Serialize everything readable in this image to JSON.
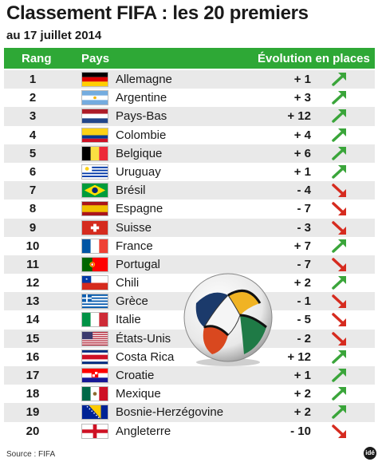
{
  "title": "Classement FIFA : les 20 premiers",
  "subtitle": "au 17 juillet 2014",
  "header": {
    "rank": "Rang",
    "country": "Pays",
    "evolution": "Évolution en places"
  },
  "rows": [
    {
      "rank": "1",
      "country": "Allemagne",
      "evolution": "+ 1",
      "direction": "up",
      "flag": "germany"
    },
    {
      "rank": "2",
      "country": "Argentine",
      "evolution": "+ 3",
      "direction": "up",
      "flag": "argentina"
    },
    {
      "rank": "3",
      "country": "Pays-Bas",
      "evolution": "+ 12",
      "direction": "up",
      "flag": "netherlands"
    },
    {
      "rank": "4",
      "country": "Colombie",
      "evolution": "+ 4",
      "direction": "up",
      "flag": "colombia"
    },
    {
      "rank": "5",
      "country": "Belgique",
      "evolution": "+ 6",
      "direction": "up",
      "flag": "belgium"
    },
    {
      "rank": "6",
      "country": "Uruguay",
      "evolution": "+ 1",
      "direction": "up",
      "flag": "uruguay"
    },
    {
      "rank": "7",
      "country": "Brésil",
      "evolution": "- 4",
      "direction": "down",
      "flag": "brazil"
    },
    {
      "rank": "8",
      "country": "Espagne",
      "evolution": "- 7",
      "direction": "down",
      "flag": "spain"
    },
    {
      "rank": "9",
      "country": "Suisse",
      "evolution": "- 3",
      "direction": "down",
      "flag": "switzerland"
    },
    {
      "rank": "10",
      "country": "France",
      "evolution": "+ 7",
      "direction": "up",
      "flag": "france"
    },
    {
      "rank": "11",
      "country": "Portugal",
      "evolution": "- 7",
      "direction": "down",
      "flag": "portugal"
    },
    {
      "rank": "12",
      "country": "Chili",
      "evolution": "+ 2",
      "direction": "up",
      "flag": "chile"
    },
    {
      "rank": "13",
      "country": "Grèce",
      "evolution": "- 1",
      "direction": "down",
      "flag": "greece"
    },
    {
      "rank": "14",
      "country": "Italie",
      "evolution": "- 5",
      "direction": "down",
      "flag": "italy"
    },
    {
      "rank": "15",
      "country": "États-Unis",
      "evolution": "- 2",
      "direction": "down",
      "flag": "usa"
    },
    {
      "rank": "16",
      "country": "Costa Rica",
      "evolution": "+ 12",
      "direction": "up",
      "flag": "costa-rica"
    },
    {
      "rank": "17",
      "country": "Croatie",
      "evolution": "+ 1",
      "direction": "up",
      "flag": "croatia"
    },
    {
      "rank": "18",
      "country": "Mexique",
      "evolution": "+ 2",
      "direction": "up",
      "flag": "mexico"
    },
    {
      "rank": "19",
      "country": "Bosnie-Herzégovine",
      "evolution": "+ 2",
      "direction": "up",
      "flag": "bosnia"
    },
    {
      "rank": "20",
      "country": "Angleterre",
      "evolution": "- 10",
      "direction": "down",
      "flag": "england"
    }
  ],
  "source": "Source : FIFA",
  "logo_text": "idé",
  "colors": {
    "header_green": "#2ea836",
    "arrow_up": "#3aa53a",
    "arrow_down": "#d62b1f",
    "row_alt": "#e9e9e9"
  },
  "icons": {
    "up": "arrow-up-right-icon",
    "down": "arrow-down-right-icon",
    "ball": "football-icon"
  }
}
